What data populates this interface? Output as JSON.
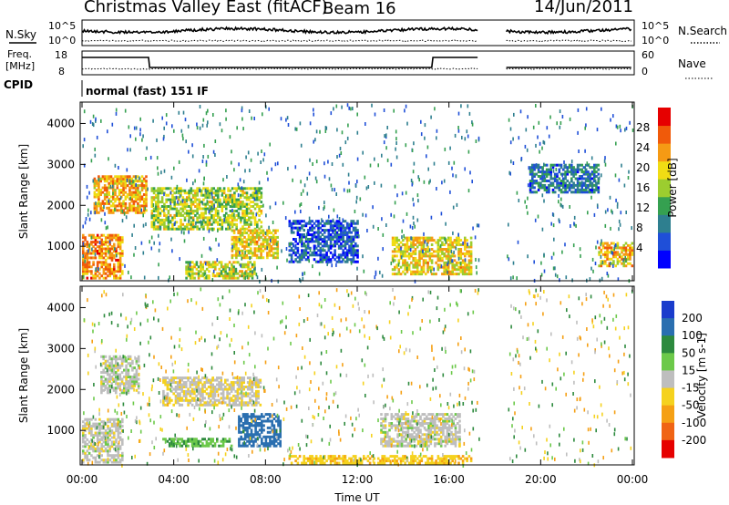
{
  "header": {
    "station": "Christmas Valley East (fitACF)",
    "beam": "Beam 16",
    "date": "14/Jun/2011"
  },
  "strips": {
    "nsky_label": "N.Sky",
    "nsky_ticks": [
      "10^5",
      "10^0"
    ],
    "nsearch_label": "N.Search",
    "nsearch_ticks": [
      "10^5",
      "10^0"
    ],
    "freq_label_1": "Freq.",
    "freq_label_2": "[MHz]",
    "freq_ticks": [
      "18",
      "8"
    ],
    "nave_label": "Nave",
    "nave_ticks": [
      "60",
      "0"
    ],
    "cpid_label": "CPID",
    "cpid_text": "normal (fast) 151 IF"
  },
  "chart_data": [
    {
      "type": "heatmap",
      "title": "",
      "quantity": "Power",
      "xlabel": "Time UT",
      "ylabel": "Slant Range [km]",
      "colorbar_label": "Power [dB]",
      "xlim": [
        0,
        24
      ],
      "ylim": [
        180,
        4500
      ],
      "x_ticks": [
        "00:00",
        "04:00",
        "08:00",
        "12:00",
        "16:00",
        "20:00",
        "00:00"
      ],
      "y_ticks": [
        1000,
        2000,
        3000,
        4000
      ],
      "colorbar_ticks": [
        4,
        8,
        12,
        16,
        20,
        24,
        28
      ],
      "colorbar_range": [
        0,
        32
      ],
      "colorbar_colors": [
        "#0000ff",
        "#1f4fd8",
        "#2e7f8f",
        "#35a050",
        "#9ccd2f",
        "#f0dc14",
        "#f59a14",
        "#f05a0a",
        "#e60000"
      ],
      "data_gap_hours": [
        17.3,
        18.5
      ],
      "echo_regions": [
        {
          "t0": 0.0,
          "t1": 1.8,
          "r0": 200,
          "r1": 1300,
          "p": 24
        },
        {
          "t0": 0.5,
          "t1": 2.8,
          "r0": 1800,
          "r1": 2700,
          "p": 22
        },
        {
          "t0": 3.0,
          "t1": 7.8,
          "r0": 1400,
          "r1": 2400,
          "p": 17
        },
        {
          "t0": 6.5,
          "t1": 8.5,
          "r0": 700,
          "r1": 1400,
          "p": 20
        },
        {
          "t0": 4.5,
          "t1": 7.5,
          "r0": 200,
          "r1": 600,
          "p": 18
        },
        {
          "t0": 13.5,
          "t1": 17.0,
          "r0": 300,
          "r1": 1200,
          "p": 20
        },
        {
          "t0": 9.0,
          "t1": 12.0,
          "r0": 600,
          "r1": 1600,
          "p": 6
        },
        {
          "t0": 19.5,
          "t1": 22.5,
          "r0": 2300,
          "r1": 3000,
          "p": 8
        },
        {
          "t0": 22.5,
          "t1": 24.0,
          "r0": 500,
          "r1": 1100,
          "p": 22
        }
      ]
    },
    {
      "type": "heatmap",
      "title": "",
      "quantity": "Velocity",
      "xlabel": "Time UT",
      "ylabel": "Slant Range [km]",
      "colorbar_label": "Velocity [m s-1]",
      "xlim": [
        0,
        24
      ],
      "ylim": [
        180,
        4500
      ],
      "x_ticks": [
        "00:00",
        "04:00",
        "08:00",
        "12:00",
        "16:00",
        "20:00",
        "00:00"
      ],
      "y_ticks": [
        1000,
        2000,
        3000,
        4000
      ],
      "colorbar_ticks": [
        200,
        100,
        50,
        15,
        -15,
        -50,
        -100,
        -200
      ],
      "colorbar_colors": [
        "#1a3ccc",
        "#2a6fb0",
        "#2d8a3e",
        "#6cc94a",
        "#bebebe",
        "#f5d21e",
        "#f5a014",
        "#f06414",
        "#e60000"
      ],
      "data_gap_hours": [
        17.3,
        18.5
      ],
      "echo_regions": [
        {
          "t0": 0.0,
          "t1": 1.8,
          "r0": 200,
          "r1": 1300,
          "v": 0
        },
        {
          "t0": 0.8,
          "t1": 2.5,
          "r0": 1900,
          "r1": 2800,
          "v": 0
        },
        {
          "t0": 3.5,
          "t1": 7.8,
          "r0": 1600,
          "r1": 2300,
          "v": -10
        },
        {
          "t0": 6.8,
          "t1": 8.6,
          "r0": 600,
          "r1": 1400,
          "v": 120
        },
        {
          "t0": 3.5,
          "t1": 6.5,
          "r0": 600,
          "r1": 800,
          "v": 40
        },
        {
          "t0": 13.0,
          "t1": 16.5,
          "r0": 600,
          "r1": 1400,
          "v": 0
        },
        {
          "t0": 9.0,
          "t1": 17.0,
          "r0": 180,
          "r1": 400,
          "v": -40
        }
      ]
    }
  ]
}
